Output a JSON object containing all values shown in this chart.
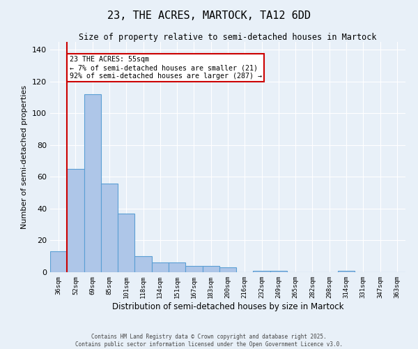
{
  "title": "23, THE ACRES, MARTOCK, TA12 6DD",
  "subtitle": "Size of property relative to semi-detached houses in Martock",
  "xlabel": "Distribution of semi-detached houses by size in Martock",
  "ylabel": "Number of semi-detached properties",
  "categories": [
    "36sqm",
    "52sqm",
    "69sqm",
    "85sqm",
    "101sqm",
    "118sqm",
    "134sqm",
    "151sqm",
    "167sqm",
    "183sqm",
    "200sqm",
    "216sqm",
    "232sqm",
    "249sqm",
    "265sqm",
    "282sqm",
    "298sqm",
    "314sqm",
    "331sqm",
    "347sqm",
    "363sqm"
  ],
  "values": [
    13,
    65,
    112,
    56,
    37,
    10,
    6,
    6,
    4,
    4,
    3,
    0,
    1,
    1,
    0,
    0,
    0,
    1,
    0,
    0,
    0
  ],
  "bar_color": "#aec6e8",
  "bar_edge_color": "#5a9fd4",
  "vline_color": "#cc0000",
  "vline_x_index": 1,
  "annotation_text": "23 THE ACRES: 55sqm\n← 7% of semi-detached houses are smaller (21)\n92% of semi-detached houses are larger (287) →",
  "annotation_box_color": "#ffffff",
  "annotation_box_edge_color": "#cc0000",
  "ylim": [
    0,
    145
  ],
  "yticks": [
    0,
    20,
    40,
    60,
    80,
    100,
    120,
    140
  ],
  "bg_color": "#e8f0f8",
  "grid_color": "#ffffff",
  "footer_line1": "Contains HM Land Registry data © Crown copyright and database right 2025.",
  "footer_line2": "Contains public sector information licensed under the Open Government Licence v3.0."
}
